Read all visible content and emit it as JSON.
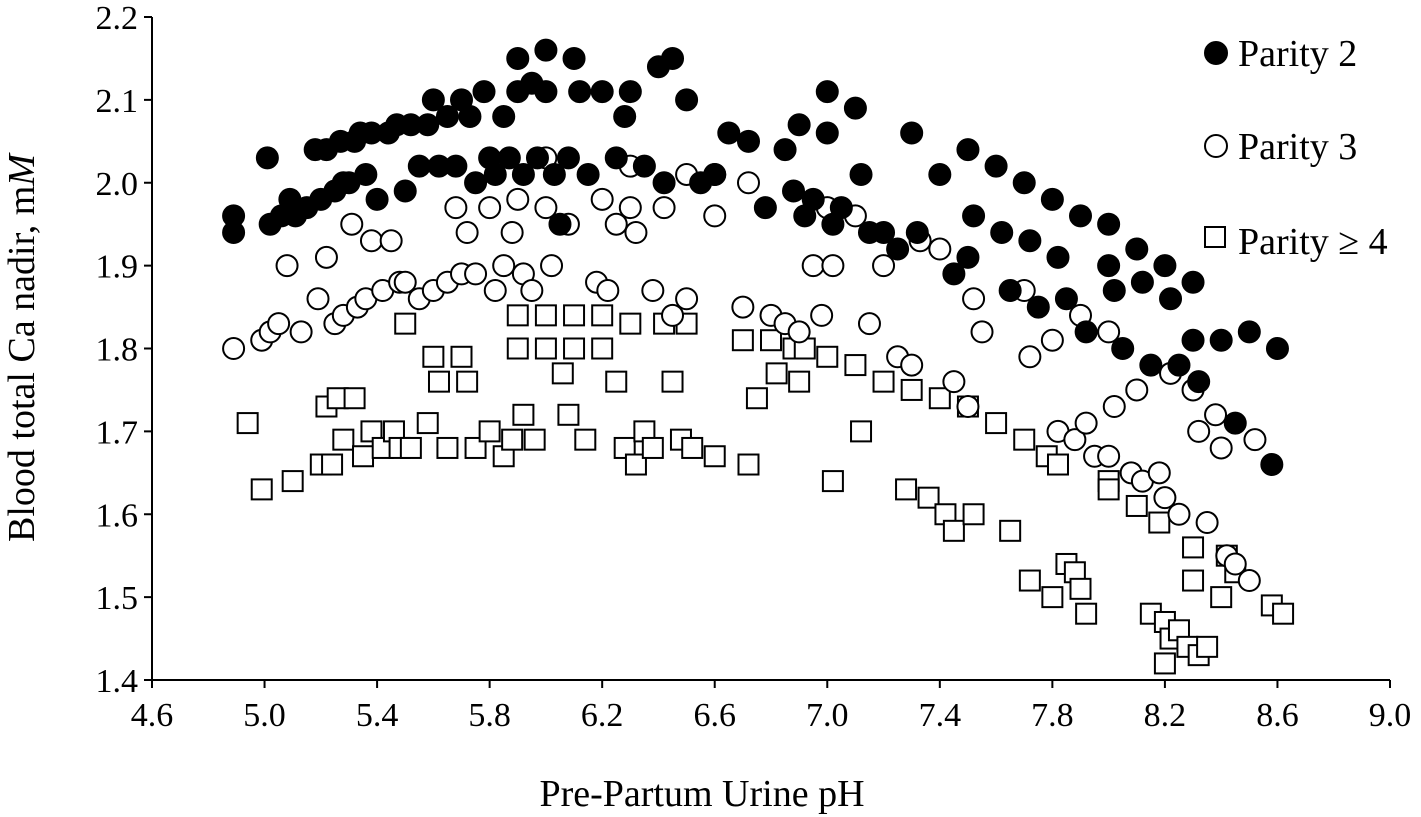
{
  "chart_data": {
    "type": "scatter",
    "xlabel": "Pre-Partum Urine pH",
    "ylabel": "Blood total Ca nadir, mM",
    "ylabel_parts": [
      "Blood total Ca nadir, m",
      "M"
    ],
    "xlim": [
      4.6,
      9.0
    ],
    "ylim": [
      1.4,
      2.2
    ],
    "xticks": [
      "4.6",
      "5.0",
      "5.4",
      "5.8",
      "6.2",
      "6.6",
      "7.0",
      "7.4",
      "7.8",
      "8.2",
      "8.6",
      "9.0"
    ],
    "yticks": [
      "1.4",
      "1.5",
      "1.6",
      "1.7",
      "1.8",
      "1.9",
      "2.0",
      "2.1",
      "2.2"
    ],
    "grid": false,
    "legend_position": "top-right",
    "series": [
      {
        "name": "Parity 2",
        "marker": "filled-circle",
        "color": "#000000",
        "points": [
          [
            4.89,
            1.96
          ],
          [
            4.89,
            1.94
          ],
          [
            5.01,
            2.03
          ],
          [
            5.02,
            1.95
          ],
          [
            5.06,
            1.96
          ],
          [
            5.09,
            1.98
          ],
          [
            5.11,
            1.96
          ],
          [
            5.15,
            1.97
          ],
          [
            5.18,
            2.04
          ],
          [
            5.2,
            1.98
          ],
          [
            5.22,
            2.04
          ],
          [
            5.25,
            1.99
          ],
          [
            5.27,
            2.05
          ],
          [
            5.28,
            2.0
          ],
          [
            5.3,
            2.0
          ],
          [
            5.32,
            2.05
          ],
          [
            5.34,
            2.06
          ],
          [
            5.36,
            2.01
          ],
          [
            5.38,
            2.06
          ],
          [
            5.4,
            1.98
          ],
          [
            5.44,
            2.06
          ],
          [
            5.47,
            2.07
          ],
          [
            5.5,
            1.99
          ],
          [
            5.52,
            2.07
          ],
          [
            5.55,
            2.02
          ],
          [
            5.58,
            2.07
          ],
          [
            5.6,
            2.1
          ],
          [
            5.62,
            2.02
          ],
          [
            5.65,
            2.08
          ],
          [
            5.68,
            2.02
          ],
          [
            5.7,
            2.1
          ],
          [
            5.73,
            2.08
          ],
          [
            5.75,
            2.0
          ],
          [
            5.78,
            2.11
          ],
          [
            5.8,
            2.03
          ],
          [
            5.82,
            2.01
          ],
          [
            5.85,
            2.08
          ],
          [
            5.87,
            2.03
          ],
          [
            5.9,
            2.15
          ],
          [
            5.9,
            2.11
          ],
          [
            5.92,
            2.01
          ],
          [
            5.95,
            2.12
          ],
          [
            5.97,
            2.03
          ],
          [
            6.0,
            2.16
          ],
          [
            6.0,
            2.11
          ],
          [
            6.03,
            2.01
          ],
          [
            6.05,
            1.95
          ],
          [
            6.08,
            2.03
          ],
          [
            6.1,
            2.15
          ],
          [
            6.12,
            2.11
          ],
          [
            6.15,
            2.01
          ],
          [
            6.2,
            2.11
          ],
          [
            6.25,
            2.03
          ],
          [
            6.28,
            2.08
          ],
          [
            6.3,
            2.11
          ],
          [
            6.35,
            2.02
          ],
          [
            6.4,
            2.14
          ],
          [
            6.42,
            2.0
          ],
          [
            6.45,
            2.15
          ],
          [
            6.5,
            2.1
          ],
          [
            6.55,
            2.0
          ],
          [
            6.6,
            2.01
          ],
          [
            6.65,
            2.06
          ],
          [
            6.72,
            2.05
          ],
          [
            6.78,
            1.97
          ],
          [
            6.85,
            2.04
          ],
          [
            6.88,
            1.99
          ],
          [
            6.9,
            2.07
          ],
          [
            6.92,
            1.96
          ],
          [
            6.95,
            1.98
          ],
          [
            7.0,
            2.11
          ],
          [
            7.0,
            2.06
          ],
          [
            7.02,
            1.95
          ],
          [
            7.05,
            1.97
          ],
          [
            7.1,
            2.09
          ],
          [
            7.12,
            2.01
          ],
          [
            7.15,
            1.94
          ],
          [
            7.2,
            1.94
          ],
          [
            7.25,
            1.92
          ],
          [
            7.3,
            2.06
          ],
          [
            7.32,
            1.94
          ],
          [
            7.4,
            2.01
          ],
          [
            7.45,
            1.89
          ],
          [
            7.5,
            2.04
          ],
          [
            7.5,
            1.91
          ],
          [
            7.52,
            1.96
          ],
          [
            7.6,
            2.02
          ],
          [
            7.62,
            1.94
          ],
          [
            7.65,
            1.87
          ],
          [
            7.7,
            2.0
          ],
          [
            7.72,
            1.93
          ],
          [
            7.75,
            1.85
          ],
          [
            7.8,
            1.98
          ],
          [
            7.82,
            1.91
          ],
          [
            7.85,
            1.86
          ],
          [
            7.9,
            1.96
          ],
          [
            7.92,
            1.82
          ],
          [
            8.0,
            1.95
          ],
          [
            8.0,
            1.9
          ],
          [
            8.02,
            1.87
          ],
          [
            8.05,
            1.8
          ],
          [
            8.1,
            1.92
          ],
          [
            8.12,
            1.88
          ],
          [
            8.15,
            1.78
          ],
          [
            8.2,
            1.9
          ],
          [
            8.22,
            1.86
          ],
          [
            8.25,
            1.78
          ],
          [
            8.3,
            1.88
          ],
          [
            8.3,
            1.81
          ],
          [
            8.32,
            1.76
          ],
          [
            8.4,
            1.81
          ],
          [
            8.45,
            1.71
          ],
          [
            8.5,
            1.82
          ],
          [
            8.58,
            1.66
          ],
          [
            8.6,
            1.8
          ]
        ]
      },
      {
        "name": "Parity 3",
        "marker": "open-circle",
        "color": "#000000",
        "points": [
          [
            4.89,
            1.8
          ],
          [
            4.99,
            1.81
          ],
          [
            5.02,
            1.82
          ],
          [
            5.05,
            1.83
          ],
          [
            5.08,
            1.9
          ],
          [
            5.13,
            1.82
          ],
          [
            5.19,
            1.86
          ],
          [
            5.22,
            1.91
          ],
          [
            5.25,
            1.83
          ],
          [
            5.28,
            1.84
          ],
          [
            5.31,
            1.95
          ],
          [
            5.33,
            1.85
          ],
          [
            5.36,
            1.86
          ],
          [
            5.38,
            1.93
          ],
          [
            5.42,
            1.87
          ],
          [
            5.45,
            1.93
          ],
          [
            5.48,
            1.88
          ],
          [
            5.5,
            1.88
          ],
          [
            5.55,
            1.86
          ],
          [
            5.6,
            1.87
          ],
          [
            5.65,
            1.88
          ],
          [
            5.68,
            1.97
          ],
          [
            5.7,
            1.89
          ],
          [
            5.72,
            1.94
          ],
          [
            5.75,
            1.89
          ],
          [
            5.8,
            1.97
          ],
          [
            5.82,
            1.87
          ],
          [
            5.85,
            1.9
          ],
          [
            5.88,
            1.94
          ],
          [
            5.9,
            1.98
          ],
          [
            5.92,
            1.89
          ],
          [
            5.95,
            1.87
          ],
          [
            6.0,
            2.03
          ],
          [
            6.0,
            1.97
          ],
          [
            6.02,
            1.9
          ],
          [
            6.08,
            1.95
          ],
          [
            6.18,
            1.88
          ],
          [
            6.2,
            1.98
          ],
          [
            6.22,
            1.87
          ],
          [
            6.25,
            1.95
          ],
          [
            6.3,
            2.02
          ],
          [
            6.3,
            1.97
          ],
          [
            6.32,
            1.94
          ],
          [
            6.38,
            1.87
          ],
          [
            6.42,
            1.97
          ],
          [
            6.45,
            1.84
          ],
          [
            6.5,
            2.01
          ],
          [
            6.5,
            1.86
          ],
          [
            6.6,
            2.01
          ],
          [
            6.6,
            1.96
          ],
          [
            6.7,
            1.85
          ],
          [
            6.72,
            2.0
          ],
          [
            6.8,
            1.84
          ],
          [
            6.85,
            1.83
          ],
          [
            6.9,
            1.82
          ],
          [
            6.95,
            1.9
          ],
          [
            6.98,
            1.84
          ],
          [
            7.0,
            1.97
          ],
          [
            7.02,
            1.9
          ],
          [
            7.1,
            1.96
          ],
          [
            7.15,
            1.83
          ],
          [
            7.2,
            1.9
          ],
          [
            7.25,
            1.79
          ],
          [
            7.3,
            1.78
          ],
          [
            7.33,
            1.93
          ],
          [
            7.4,
            1.92
          ],
          [
            7.45,
            1.76
          ],
          [
            7.5,
            1.73
          ],
          [
            7.52,
            1.86
          ],
          [
            7.55,
            1.82
          ],
          [
            7.7,
            1.87
          ],
          [
            7.72,
            1.79
          ],
          [
            7.8,
            1.81
          ],
          [
            7.82,
            1.7
          ],
          [
            7.88,
            1.69
          ],
          [
            7.9,
            1.84
          ],
          [
            7.92,
            1.71
          ],
          [
            7.95,
            1.67
          ],
          [
            8.0,
            1.82
          ],
          [
            8.0,
            1.67
          ],
          [
            8.02,
            1.73
          ],
          [
            8.08,
            1.65
          ],
          [
            8.1,
            1.75
          ],
          [
            8.12,
            1.64
          ],
          [
            8.18,
            1.65
          ],
          [
            8.2,
            1.62
          ],
          [
            8.22,
            1.77
          ],
          [
            8.25,
            1.6
          ],
          [
            8.3,
            1.75
          ],
          [
            8.32,
            1.7
          ],
          [
            8.35,
            1.59
          ],
          [
            8.38,
            1.72
          ],
          [
            8.4,
            1.68
          ],
          [
            8.42,
            1.55
          ],
          [
            8.45,
            1.54
          ],
          [
            8.5,
            1.52
          ],
          [
            8.52,
            1.69
          ]
        ]
      },
      {
        "name": "Parity ≥ 4",
        "marker": "open-square",
        "color": "#000000",
        "points": [
          [
            4.94,
            1.71
          ],
          [
            4.99,
            1.63
          ],
          [
            5.1,
            1.64
          ],
          [
            5.2,
            1.66
          ],
          [
            5.22,
            1.73
          ],
          [
            5.24,
            1.66
          ],
          [
            5.26,
            1.74
          ],
          [
            5.28,
            1.69
          ],
          [
            5.32,
            1.74
          ],
          [
            5.35,
            1.67
          ],
          [
            5.38,
            1.7
          ],
          [
            5.42,
            1.68
          ],
          [
            5.46,
            1.7
          ],
          [
            5.48,
            1.68
          ],
          [
            5.5,
            1.83
          ],
          [
            5.52,
            1.68
          ],
          [
            5.58,
            1.71
          ],
          [
            5.6,
            1.79
          ],
          [
            5.62,
            1.76
          ],
          [
            5.65,
            1.68
          ],
          [
            5.7,
            1.79
          ],
          [
            5.72,
            1.76
          ],
          [
            5.75,
            1.68
          ],
          [
            5.8,
            1.7
          ],
          [
            5.85,
            1.67
          ],
          [
            5.88,
            1.69
          ],
          [
            5.9,
            1.84
          ],
          [
            5.9,
            1.8
          ],
          [
            5.92,
            1.72
          ],
          [
            5.96,
            1.69
          ],
          [
            6.0,
            1.84
          ],
          [
            6.0,
            1.8
          ],
          [
            6.06,
            1.77
          ],
          [
            6.08,
            1.72
          ],
          [
            6.1,
            1.84
          ],
          [
            6.1,
            1.8
          ],
          [
            6.14,
            1.69
          ],
          [
            6.2,
            1.84
          ],
          [
            6.2,
            1.8
          ],
          [
            6.25,
            1.76
          ],
          [
            6.28,
            1.68
          ],
          [
            6.3,
            1.83
          ],
          [
            6.32,
            1.66
          ],
          [
            6.35,
            1.7
          ],
          [
            6.38,
            1.68
          ],
          [
            6.42,
            1.83
          ],
          [
            6.45,
            1.76
          ],
          [
            6.48,
            1.69
          ],
          [
            6.5,
            1.83
          ],
          [
            6.52,
            1.68
          ],
          [
            6.6,
            1.67
          ],
          [
            6.7,
            1.81
          ],
          [
            6.72,
            1.66
          ],
          [
            6.75,
            1.74
          ],
          [
            6.8,
            1.81
          ],
          [
            6.82,
            1.77
          ],
          [
            6.88,
            1.8
          ],
          [
            6.9,
            1.76
          ],
          [
            6.92,
            1.8
          ],
          [
            7.0,
            1.79
          ],
          [
            7.02,
            1.64
          ],
          [
            7.1,
            1.78
          ],
          [
            7.12,
            1.7
          ],
          [
            7.2,
            1.76
          ],
          [
            7.28,
            1.63
          ],
          [
            7.3,
            1.75
          ],
          [
            7.36,
            1.62
          ],
          [
            7.4,
            1.74
          ],
          [
            7.42,
            1.6
          ],
          [
            7.45,
            1.58
          ],
          [
            7.5,
            1.73
          ],
          [
            7.52,
            1.6
          ],
          [
            7.6,
            1.71
          ],
          [
            7.65,
            1.58
          ],
          [
            7.7,
            1.69
          ],
          [
            7.72,
            1.52
          ],
          [
            7.78,
            1.67
          ],
          [
            7.8,
            1.5
          ],
          [
            7.82,
            1.66
          ],
          [
            7.85,
            1.54
          ],
          [
            7.88,
            1.53
          ],
          [
            7.9,
            1.51
          ],
          [
            7.92,
            1.48
          ],
          [
            8.0,
            1.64
          ],
          [
            8.0,
            1.63
          ],
          [
            8.1,
            1.61
          ],
          [
            8.15,
            1.48
          ],
          [
            8.18,
            1.59
          ],
          [
            8.2,
            1.47
          ],
          [
            8.2,
            1.42
          ],
          [
            8.22,
            1.45
          ],
          [
            8.25,
            1.46
          ],
          [
            8.28,
            1.44
          ],
          [
            8.3,
            1.56
          ],
          [
            8.3,
            1.52
          ],
          [
            8.32,
            1.43
          ],
          [
            8.35,
            1.44
          ],
          [
            8.4,
            1.5
          ],
          [
            8.42,
            1.55
          ],
          [
            8.45,
            1.53
          ],
          [
            8.58,
            1.49
          ],
          [
            8.62,
            1.48
          ]
        ]
      }
    ]
  }
}
